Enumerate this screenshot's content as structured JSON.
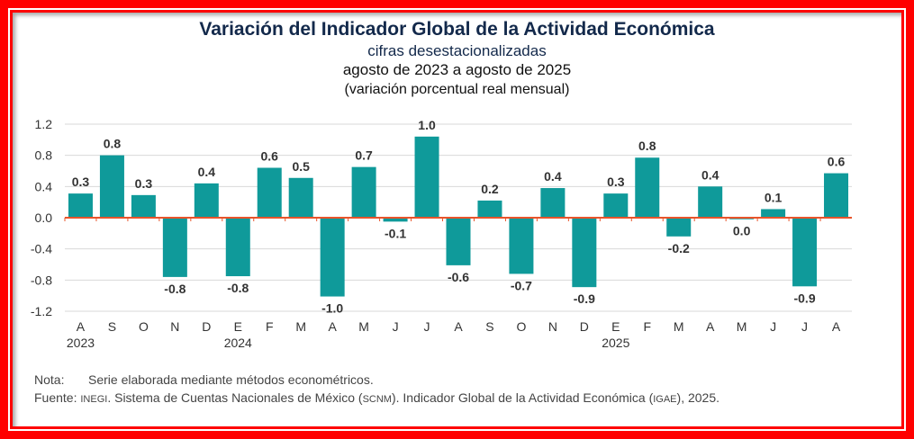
{
  "chart_data": {
    "type": "bar",
    "title": "Variación del Indicador Global de la Actividad Económica",
    "subtitle": "cifras desestacionalizadas",
    "period": "agosto de 2023 a agosto de 2025",
    "ylabel": "(variación porcentual real mensual)",
    "ylim": [
      -1.2,
      1.2
    ],
    "yticks": [
      "1.2",
      "0.8",
      "0.4",
      "0.0",
      "-0.4",
      "-0.8",
      "-1.2"
    ],
    "ytick_values": [
      1.2,
      0.8,
      0.4,
      0.0,
      -0.4,
      -0.8,
      -1.2
    ],
    "categories": [
      "A",
      "S",
      "O",
      "N",
      "D",
      "E",
      "F",
      "M",
      "A",
      "M",
      "J",
      "J",
      "A",
      "S",
      "O",
      "N",
      "D",
      "E",
      "F",
      "M",
      "A",
      "M",
      "J",
      "J",
      "A"
    ],
    "year_labels": [
      {
        "index": 0,
        "label": "2023"
      },
      {
        "index": 5,
        "label": "2024"
      },
      {
        "index": 17,
        "label": "2025"
      }
    ],
    "values": [
      0.31,
      0.8,
      0.29,
      -0.76,
      0.44,
      -0.75,
      0.64,
      0.51,
      -1.01,
      0.65,
      -0.05,
      1.04,
      -0.61,
      0.22,
      -0.72,
      0.38,
      -0.89,
      0.31,
      0.77,
      -0.24,
      0.4,
      -0.02,
      0.11,
      -0.88,
      0.57
    ],
    "labels": [
      "0.3",
      "0.8",
      "0.3",
      "-0.8",
      "0.4",
      "-0.8",
      "0.6",
      "0.5",
      "-1.0",
      "0.7",
      "-0.1",
      "1.0",
      "-0.6",
      "0.2",
      "-0.7",
      "0.4",
      "-0.9",
      "0.3",
      "0.8",
      "-0.2",
      "0.4",
      "0.0",
      "0.1",
      "-0.9",
      "0.6"
    ],
    "bar_color": "#0f9a9a",
    "zero_line_color": "#e8542a",
    "grid": true
  },
  "notes": {
    "nota_label": "Nota:",
    "nota_text": "Serie elaborada mediante métodos econométricos.",
    "fuente_label": "Fuente:",
    "fuente_inegi": "INEGI",
    "fuente_text1": ". Sistema de Cuentas Nacionales de México (",
    "fuente_scnm": "SCNM",
    "fuente_text2": "). Indicador Global de la Actividad Económica (",
    "fuente_igae": "IGAE",
    "fuente_text3": "), 2025."
  }
}
